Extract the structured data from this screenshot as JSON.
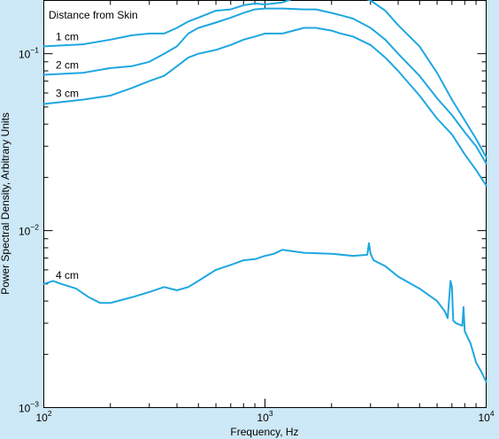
{
  "chart_data": {
    "type": "line",
    "title": "",
    "legend_title": "Distance from Skin",
    "xlabel": "Frequency, Hz",
    "ylabel": "Power Spectral Density, Arbitrary Units",
    "x_scale": "log",
    "y_scale": "log",
    "xlim": [
      100,
      10000
    ],
    "ylim": [
      0.001,
      0.2
    ],
    "x_ticks": [
      {
        "value": 100,
        "base": "10",
        "exp": "2"
      },
      {
        "value": 1000,
        "base": "10",
        "exp": "3"
      },
      {
        "value": 10000,
        "base": "10",
        "exp": "4"
      }
    ],
    "y_ticks": [
      {
        "value": 0.001,
        "base": "10",
        "exp": "−3"
      },
      {
        "value": 0.01,
        "base": "10",
        "exp": "−2"
      },
      {
        "value": 0.1,
        "base": "10",
        "exp": "−1"
      }
    ],
    "grid": false,
    "line_color": "#1ea7e1",
    "series": [
      {
        "name": "1 cm",
        "x": [
          100,
          150,
          200,
          250,
          300,
          350,
          400,
          450,
          500,
          600,
          700,
          800,
          900,
          1000,
          1200,
          1500,
          1700,
          2000,
          2200,
          2500,
          3000,
          3500,
          4000,
          5000,
          6000,
          7000,
          8000,
          9000,
          10000
        ],
        "y": [
          0.11,
          0.113,
          0.12,
          0.127,
          0.13,
          0.13,
          0.14,
          0.152,
          0.16,
          0.175,
          0.178,
          0.188,
          0.192,
          0.19,
          0.195,
          0.215,
          0.22,
          0.22,
          0.225,
          0.215,
          0.2,
          0.175,
          0.145,
          0.11,
          0.078,
          0.055,
          0.042,
          0.033,
          0.026
        ]
      },
      {
        "name": "2 cm",
        "x": [
          100,
          150,
          200,
          250,
          300,
          350,
          400,
          450,
          500,
          600,
          700,
          800,
          900,
          1000,
          1200,
          1500,
          1700,
          2000,
          2200,
          2500,
          3000,
          3500,
          4000,
          5000,
          6000,
          7000,
          8000,
          9000,
          10000
        ],
        "y": [
          0.076,
          0.078,
          0.083,
          0.085,
          0.09,
          0.1,
          0.11,
          0.13,
          0.14,
          0.15,
          0.16,
          0.17,
          0.178,
          0.18,
          0.18,
          0.178,
          0.178,
          0.17,
          0.165,
          0.158,
          0.14,
          0.12,
          0.1,
          0.075,
          0.056,
          0.045,
          0.036,
          0.03,
          0.024
        ]
      },
      {
        "name": "3 cm",
        "x": [
          100,
          150,
          200,
          250,
          300,
          350,
          400,
          450,
          500,
          600,
          700,
          800,
          900,
          1000,
          1200,
          1500,
          1700,
          2000,
          2200,
          2500,
          3000,
          3500,
          4000,
          5000,
          6000,
          7000,
          8000,
          9000,
          10000
        ],
        "y": [
          0.052,
          0.055,
          0.058,
          0.064,
          0.07,
          0.075,
          0.085,
          0.095,
          0.1,
          0.105,
          0.112,
          0.12,
          0.125,
          0.13,
          0.13,
          0.14,
          0.14,
          0.135,
          0.13,
          0.125,
          0.112,
          0.095,
          0.08,
          0.058,
          0.043,
          0.035,
          0.027,
          0.022,
          0.018
        ]
      },
      {
        "name": "4 cm",
        "x": [
          100,
          110,
          120,
          140,
          160,
          180,
          200,
          250,
          300,
          350,
          400,
          450,
          500,
          600,
          700,
          800,
          900,
          1000,
          1100,
          1200,
          1500,
          2000,
          2500,
          2900,
          2950,
          3000,
          3100,
          3500,
          4000,
          5000,
          6000,
          6500,
          6700,
          6900,
          7000,
          7100,
          7300,
          7800,
          7900,
          8000,
          8500,
          9000,
          9500,
          10000
        ],
        "y": [
          0.005,
          0.0052,
          0.005,
          0.0047,
          0.0042,
          0.0039,
          0.0039,
          0.0042,
          0.0045,
          0.0048,
          0.0046,
          0.0048,
          0.0052,
          0.006,
          0.0064,
          0.0068,
          0.0069,
          0.0072,
          0.0074,
          0.0078,
          0.0075,
          0.0074,
          0.0072,
          0.0073,
          0.0085,
          0.0074,
          0.0068,
          0.0063,
          0.0055,
          0.0047,
          0.004,
          0.0035,
          0.0032,
          0.0052,
          0.0048,
          0.0031,
          0.003,
          0.0029,
          0.0037,
          0.0027,
          0.0023,
          0.0018,
          0.0016,
          0.0014
        ]
      }
    ]
  }
}
